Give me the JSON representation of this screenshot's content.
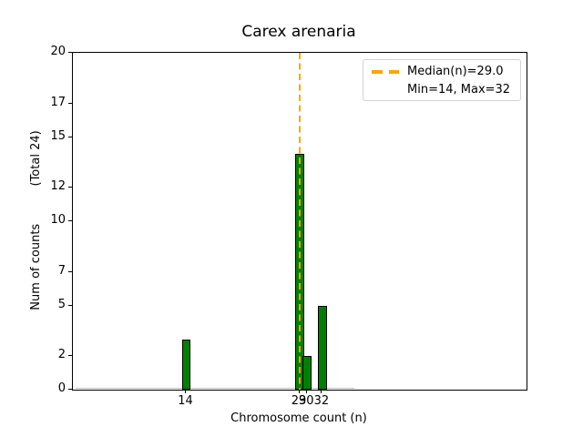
{
  "chart_data": {
    "type": "bar",
    "title": "Carex arenaria",
    "xlabel": "Chromosome count (n)",
    "ylabel": "Num of counts          (Total 24)",
    "categories": [
      14,
      29,
      30,
      32
    ],
    "values": [
      3,
      14,
      2,
      5
    ],
    "total_counts": 24,
    "bar_width_units": 1.2,
    "median": 29.0,
    "min": 14,
    "max": 32,
    "xlim": [
      -1,
      59
    ],
    "ylim": [
      0,
      20
    ],
    "x_ticks": [
      14,
      29,
      30,
      32
    ],
    "y_ticks": [
      0,
      2,
      5,
      7,
      10,
      12,
      15,
      17,
      20
    ],
    "zero_count_baseline": {
      "x_start": -0.6,
      "x_end": 36.2
    },
    "grid": false,
    "legend_position": "upper right",
    "legend": {
      "line1": "Median(n)=29.0",
      "line2": "Min=14, Max=32"
    }
  },
  "colors": {
    "bar_fill": "#008000",
    "bar_edge": "#000000",
    "median_line": "#FFA500",
    "axis": "#000000",
    "legend_border": "#d4d4d4",
    "zero_baseline": "#bbbbbb",
    "background": "#ffffff"
  }
}
